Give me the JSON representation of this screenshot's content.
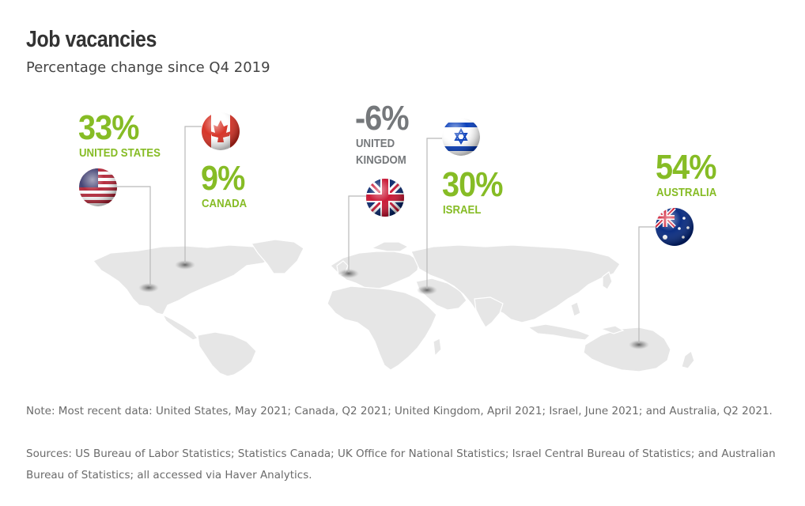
{
  "header": {
    "title": "Job vacancies",
    "subtitle": "Percentage change since Q4 2019"
  },
  "countries": [
    {
      "name": "UNITED STATES",
      "value": "33%",
      "color": "#86bc25",
      "flag": "us-flag-icon"
    },
    {
      "name": "CANADA",
      "value": "9%",
      "color": "#86bc25",
      "flag": "canada-flag-icon"
    },
    {
      "name_line1": "UNITED",
      "name_line2": "KINGDOM",
      "value": "-6%",
      "color": "#75787b",
      "flag": "uk-flag-icon"
    },
    {
      "name": "ISRAEL",
      "value": "30%",
      "color": "#86bc25",
      "flag": "israel-flag-icon"
    },
    {
      "name": "AUSTRALIA",
      "value": "54%",
      "color": "#86bc25",
      "flag": "australia-flag-icon"
    }
  ],
  "footer": {
    "note": "Note: Most recent data: United States, May 2021; Canada, Q2 2021; United Kingdom, April 2021; Israel, June 2021; and Australia, Q2 2021.",
    "sources": "Sources: US Bureau of Labor Statistics; Statistics Canada; UK Office for National Statistics; Israel Central Bureau of Statistics; and Australian Bureau of Statistics; all accessed via Haver Analytics."
  },
  "colors": {
    "positive": "#86bc25",
    "negative": "#75787b",
    "land": "#e6e6e6"
  }
}
